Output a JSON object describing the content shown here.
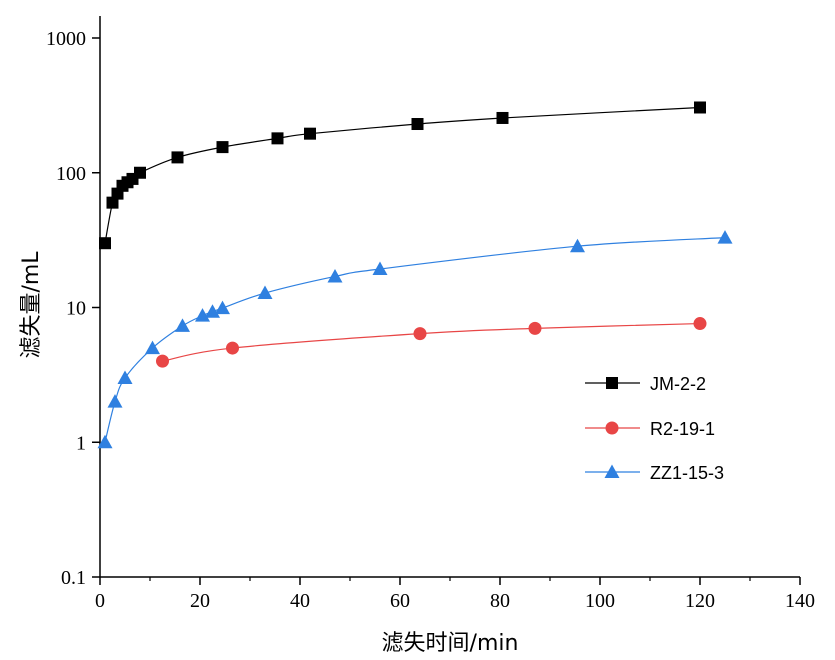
{
  "chart_data": {
    "type": "line",
    "title": "",
    "xlabel": "滤失时间/min",
    "ylabel": "滤失量/mL",
    "xlim": [
      0,
      140
    ],
    "ylim": [
      0.1,
      1000
    ],
    "yscale": "log",
    "grid": false,
    "legend_position": "right",
    "x_ticks": [
      0,
      20,
      40,
      60,
      80,
      100,
      120,
      140
    ],
    "x_tick_labels": [
      "0",
      "20",
      "40",
      "60",
      "80",
      "100",
      "120",
      "140"
    ],
    "y_ticks": [
      0.1,
      1,
      10,
      100,
      1000
    ],
    "y_tick_labels": [
      "0.1",
      "1",
      "10",
      "100",
      "1000"
    ],
    "series": [
      {
        "name": "JM-2-2",
        "color": "#000000",
        "marker": "square",
        "x": [
          1,
          2.5,
          3.5,
          4.5,
          5.5,
          6.5,
          8,
          15.5,
          24.5,
          35.5,
          42,
          63.5,
          80.5,
          120
        ],
        "y": [
          30,
          60,
          70,
          80,
          85,
          90,
          100,
          130,
          155,
          180,
          195,
          230,
          255,
          305
        ]
      },
      {
        "name": "R2-19-1",
        "color": "#e84646",
        "marker": "circle",
        "x": [
          12.5,
          26.5,
          64,
          87,
          120
        ],
        "y": [
          4.0,
          5.0,
          6.4,
          7.0,
          7.6
        ]
      },
      {
        "name": "ZZ1-15-3",
        "color": "#2f80e0",
        "marker": "triangle",
        "x": [
          1,
          3,
          5,
          10.5,
          16.5,
          20.5,
          22.5,
          24.5,
          33,
          47,
          56,
          95.5,
          125
        ],
        "y": [
          1.0,
          2.0,
          3.0,
          5.0,
          7.3,
          8.7,
          9.3,
          9.9,
          12.8,
          17,
          19.3,
          28.5,
          33
        ]
      }
    ]
  }
}
